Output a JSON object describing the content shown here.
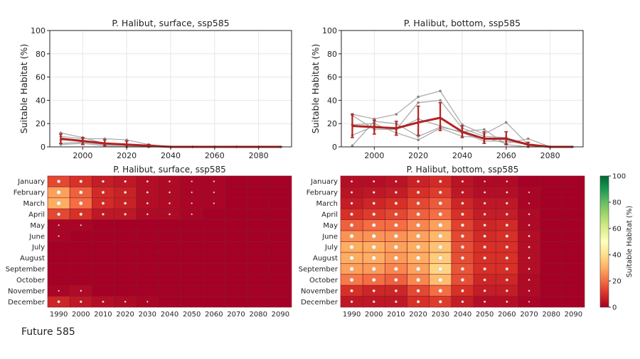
{
  "figure_caption": "Future 585",
  "colorbar": {
    "label": "Suitable Habitat (%)",
    "ticks": [
      0,
      20,
      40,
      60,
      80,
      100
    ]
  },
  "chart_data": [
    {
      "type": "line",
      "title": "P. Halibut, surface, ssp585",
      "xlabel": "",
      "ylabel": "Suitable Habitat (%)",
      "xlim": [
        1985,
        2095
      ],
      "ylim": [
        0,
        100
      ],
      "xticks": [
        2000,
        2020,
        2040,
        2060,
        2080
      ],
      "yticks": [
        0,
        20,
        40,
        60,
        80,
        100
      ],
      "grid": true,
      "x": [
        1990,
        2000,
        2010,
        2020,
        2030,
        2040,
        2050,
        2060,
        2070,
        2080,
        2090
      ],
      "member_series": [
        [
          12,
          8,
          3,
          1,
          0,
          0,
          0,
          0,
          0,
          0,
          0
        ],
        [
          9,
          7,
          7,
          6,
          2,
          0,
          0,
          0,
          0,
          0,
          0
        ],
        [
          6,
          5,
          2,
          2,
          1,
          0,
          0,
          0,
          0,
          0,
          0
        ],
        [
          3,
          4,
          2,
          1,
          0,
          0,
          0,
          0,
          0,
          0,
          0
        ],
        [
          2,
          3,
          1,
          0,
          0,
          0,
          0,
          0,
          0,
          0,
          0
        ]
      ],
      "mean": [
        7,
        5,
        3,
        2,
        1,
        0,
        0,
        0,
        0,
        0,
        0
      ],
      "error_low": [
        3,
        2,
        1,
        0,
        0,
        0,
        0,
        0,
        0,
        0,
        0
      ],
      "error_high": [
        11,
        8,
        6,
        5,
        2,
        0,
        0,
        0,
        0,
        0,
        0
      ],
      "member_color": "#9e9e9e",
      "mean_color": "#b22222"
    },
    {
      "type": "line",
      "title": "P. Halibut, bottom, ssp585",
      "xlabel": "",
      "ylabel": "Suitable Habitat (%)",
      "xlim": [
        1985,
        2095
      ],
      "ylim": [
        0,
        100
      ],
      "xticks": [
        2000,
        2020,
        2040,
        2060,
        2080
      ],
      "yticks": [
        0,
        20,
        40,
        60,
        80,
        100
      ],
      "grid": true,
      "x": [
        1990,
        2000,
        2010,
        2020,
        2030,
        2040,
        2050,
        2060,
        2070,
        2080,
        2090
      ],
      "member_series": [
        [
          28,
          24,
          28,
          43,
          48,
          19,
          11,
          21,
          2,
          0,
          0
        ],
        [
          27,
          15,
          15,
          38,
          40,
          16,
          9,
          8,
          1,
          0,
          0
        ],
        [
          10,
          18,
          15,
          24,
          18,
          12,
          5,
          5,
          2,
          0,
          0
        ],
        [
          1,
          22,
          20,
          9,
          17,
          13,
          15,
          2,
          0,
          0,
          0
        ],
        [
          19,
          20,
          12,
          6,
          16,
          9,
          8,
          3,
          7,
          0,
          0
        ]
      ],
      "mean": [
        18,
        17,
        16,
        21,
        25,
        13,
        7,
        7,
        2,
        0,
        0
      ],
      "error_low": [
        8,
        11,
        10,
        10,
        14,
        8,
        3,
        2,
        0,
        0,
        0
      ],
      "error_high": [
        28,
        23,
        22,
        35,
        38,
        18,
        13,
        13,
        4,
        0,
        0
      ],
      "member_color": "#9e9e9e",
      "mean_color": "#b22222"
    },
    {
      "type": "heatmap",
      "title": "P. Halibut, surface, ssp585",
      "rows": [
        "January",
        "February",
        "March",
        "April",
        "May",
        "June",
        "July",
        "August",
        "September",
        "October",
        "November",
        "December"
      ],
      "columns": [
        1990,
        2000,
        2010,
        2020,
        2030,
        2040,
        2050,
        2060,
        2070,
        2080,
        2090
      ],
      "zlim": [
        0,
        100
      ],
      "values": [
        [
          14,
          10,
          6,
          5,
          3,
          2,
          1,
          1,
          0,
          0,
          0
        ],
        [
          28,
          18,
          9,
          7,
          3,
          2,
          1,
          1,
          0,
          0,
          0
        ],
        [
          30,
          20,
          9,
          7,
          3,
          2,
          1,
          1,
          0,
          0,
          0
        ],
        [
          14,
          10,
          5,
          5,
          2,
          2,
          1,
          0,
          0,
          0,
          0
        ],
        [
          1,
          1,
          0,
          0,
          0,
          0,
          0,
          0,
          0,
          0,
          0
        ],
        [
          1,
          0,
          0,
          0,
          0,
          0,
          0,
          0,
          0,
          0,
          0
        ],
        [
          0,
          0,
          0,
          0,
          0,
          0,
          0,
          0,
          0,
          0,
          0
        ],
        [
          0,
          0,
          0,
          0,
          0,
          0,
          0,
          0,
          0,
          0,
          0
        ],
        [
          0,
          0,
          0,
          0,
          0,
          0,
          0,
          0,
          0,
          0,
          0
        ],
        [
          0,
          0,
          0,
          0,
          0,
          0,
          0,
          0,
          0,
          0,
          0
        ],
        [
          1,
          2,
          0,
          0,
          0,
          0,
          0,
          0,
          0,
          0,
          0
        ],
        [
          8,
          5,
          3,
          2,
          1,
          0,
          0,
          0,
          0,
          0,
          0
        ]
      ]
    },
    {
      "type": "heatmap",
      "title": "P. Halibut, bottom, ssp585",
      "rows": [
        "January",
        "February",
        "March",
        "April",
        "May",
        "June",
        "July",
        "August",
        "September",
        "October",
        "November",
        "December"
      ],
      "columns": [
        1990,
        2000,
        2010,
        2020,
        2030,
        2040,
        2050,
        2060,
        2070,
        2080,
        2090
      ],
      "zlim": [
        0,
        100
      ],
      "values": [
        [
          3,
          3,
          4,
          7,
          9,
          4,
          2,
          2,
          0,
          0,
          0
        ],
        [
          4,
          5,
          6,
          10,
          12,
          5,
          3,
          3,
          1,
          0,
          0
        ],
        [
          6,
          8,
          10,
          14,
          17,
          8,
          5,
          5,
          1,
          0,
          0
        ],
        [
          10,
          12,
          14,
          18,
          20,
          10,
          6,
          6,
          2,
          0,
          0
        ],
        [
          18,
          20,
          20,
          24,
          28,
          13,
          8,
          9,
          2,
          0,
          0
        ],
        [
          26,
          26,
          26,
          28,
          32,
          14,
          9,
          10,
          3,
          0,
          0
        ],
        [
          30,
          30,
          28,
          30,
          34,
          15,
          10,
          10,
          3,
          0,
          0
        ],
        [
          30,
          30,
          27,
          30,
          36,
          15,
          10,
          10,
          3,
          0,
          0
        ],
        [
          28,
          27,
          24,
          28,
          38,
          16,
          10,
          10,
          3,
          0,
          0
        ],
        [
          22,
          20,
          18,
          24,
          33,
          15,
          8,
          8,
          2,
          0,
          0
        ],
        [
          10,
          8,
          8,
          14,
          20,
          10,
          6,
          6,
          2,
          0,
          0
        ],
        [
          5,
          5,
          5,
          10,
          12,
          6,
          3,
          3,
          1,
          0,
          0
        ]
      ]
    }
  ]
}
